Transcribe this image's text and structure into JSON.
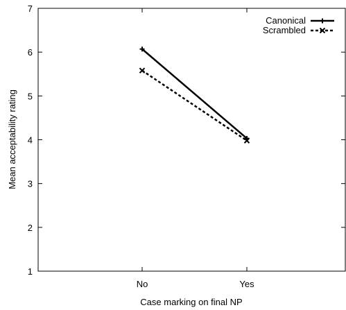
{
  "chart_data": {
    "type": "line",
    "title": "",
    "xlabel": "Case marking on final NP",
    "ylabel": "Mean acceptability rating",
    "categories": [
      "No",
      "Yes"
    ],
    "ylim": [
      1,
      7
    ],
    "yticks": [
      1,
      2,
      3,
      4,
      5,
      6,
      7
    ],
    "grid": false,
    "legend_position": "top-right",
    "series": [
      {
        "name": "Canonical",
        "values": [
          6.07,
          4.03
        ],
        "style": "solid",
        "marker": "plus",
        "color": "#000000"
      },
      {
        "name": "Scrambled",
        "values": [
          5.58,
          3.98
        ],
        "style": "dashed",
        "marker": "cross",
        "color": "#000000"
      }
    ]
  }
}
